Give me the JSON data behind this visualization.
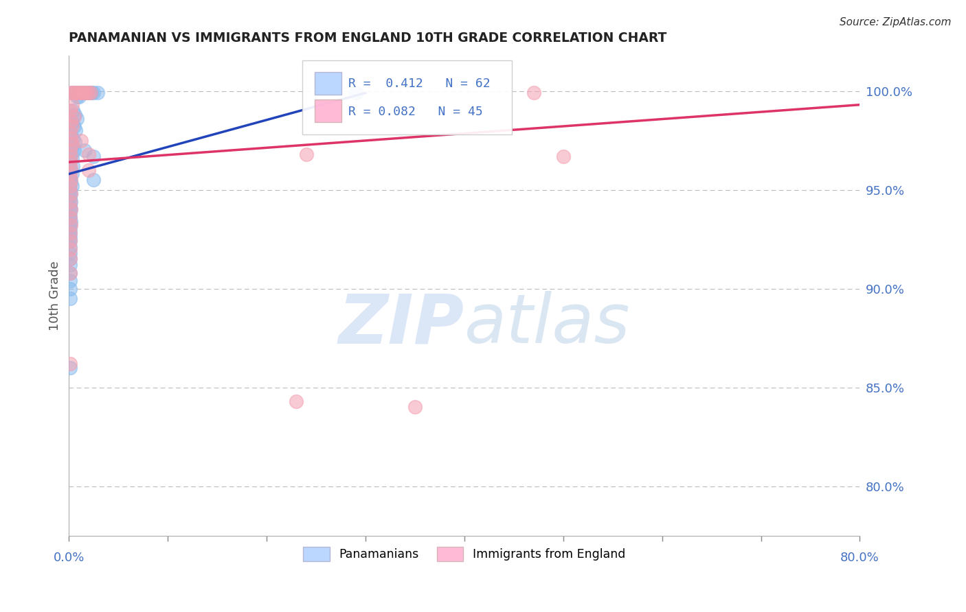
{
  "title": "PANAMANIAN VS IMMIGRANTS FROM ENGLAND 10TH GRADE CORRELATION CHART",
  "source": "Source: ZipAtlas.com",
  "ylabel": "10th Grade",
  "ylabel_ticks": [
    "100.0%",
    "95.0%",
    "90.0%",
    "85.0%",
    "80.0%"
  ],
  "ylabel_tick_vals": [
    1.0,
    0.95,
    0.9,
    0.85,
    0.8
  ],
  "xlim": [
    0.0,
    0.8
  ],
  "ylim": [
    0.775,
    1.018
  ],
  "legend_blue": "R =  0.412   N = 62",
  "legend_pink": "R = 0.082   N = 45",
  "blue_scatter": [
    [
      0.003,
      0.999
    ],
    [
      0.005,
      0.999
    ],
    [
      0.007,
      0.999
    ],
    [
      0.009,
      0.999
    ],
    [
      0.011,
      0.999
    ],
    [
      0.013,
      0.999
    ],
    [
      0.015,
      0.999
    ],
    [
      0.017,
      0.999
    ],
    [
      0.019,
      0.999
    ],
    [
      0.021,
      0.999
    ],
    [
      0.023,
      0.999
    ],
    [
      0.025,
      0.999
    ],
    [
      0.008,
      0.997
    ],
    [
      0.01,
      0.997
    ],
    [
      0.029,
      0.999
    ],
    [
      0.004,
      0.99
    ],
    [
      0.006,
      0.988
    ],
    [
      0.008,
      0.986
    ],
    [
      0.003,
      0.984
    ],
    [
      0.005,
      0.982
    ],
    [
      0.007,
      0.98
    ],
    [
      0.002,
      0.978
    ],
    [
      0.004,
      0.976
    ],
    [
      0.006,
      0.974
    ],
    [
      0.003,
      0.972
    ],
    [
      0.005,
      0.97
    ],
    [
      0.002,
      0.968
    ],
    [
      0.003,
      0.966
    ],
    [
      0.001,
      0.964
    ],
    [
      0.004,
      0.962
    ],
    [
      0.002,
      0.96
    ],
    [
      0.003,
      0.958
    ],
    [
      0.001,
      0.956
    ],
    [
      0.002,
      0.954
    ],
    [
      0.003,
      0.952
    ],
    [
      0.001,
      0.95
    ],
    [
      0.002,
      0.948
    ],
    [
      0.001,
      0.946
    ],
    [
      0.002,
      0.944
    ],
    [
      0.001,
      0.942
    ],
    [
      0.002,
      0.94
    ],
    [
      0.001,
      0.938
    ],
    [
      0.001,
      0.936
    ],
    [
      0.002,
      0.934
    ],
    [
      0.001,
      0.932
    ],
    [
      0.001,
      0.93
    ],
    [
      0.001,
      0.928
    ],
    [
      0.001,
      0.926
    ],
    [
      0.001,
      0.924
    ],
    [
      0.001,
      0.921
    ],
    [
      0.001,
      0.918
    ],
    [
      0.001,
      0.915
    ],
    [
      0.001,
      0.912
    ],
    [
      0.001,
      0.908
    ],
    [
      0.001,
      0.904
    ],
    [
      0.001,
      0.9
    ],
    [
      0.001,
      0.895
    ],
    [
      0.016,
      0.97
    ],
    [
      0.025,
      0.967
    ],
    [
      0.025,
      0.955
    ],
    [
      0.29,
      0.999
    ],
    [
      0.001,
      0.86
    ]
  ],
  "pink_scatter": [
    [
      0.002,
      0.999
    ],
    [
      0.004,
      0.999
    ],
    [
      0.006,
      0.999
    ],
    [
      0.008,
      0.999
    ],
    [
      0.01,
      0.999
    ],
    [
      0.012,
      0.999
    ],
    [
      0.014,
      0.999
    ],
    [
      0.016,
      0.999
    ],
    [
      0.018,
      0.999
    ],
    [
      0.02,
      0.999
    ],
    [
      0.022,
      0.999
    ],
    [
      0.003,
      0.993
    ],
    [
      0.001,
      0.99
    ],
    [
      0.005,
      0.987
    ],
    [
      0.002,
      0.985
    ],
    [
      0.003,
      0.982
    ],
    [
      0.001,
      0.979
    ],
    [
      0.002,
      0.976
    ],
    [
      0.003,
      0.973
    ],
    [
      0.001,
      0.97
    ],
    [
      0.002,
      0.967
    ],
    [
      0.001,
      0.964
    ],
    [
      0.002,
      0.961
    ],
    [
      0.001,
      0.958
    ],
    [
      0.002,
      0.955
    ],
    [
      0.001,
      0.952
    ],
    [
      0.002,
      0.948
    ],
    [
      0.001,
      0.944
    ],
    [
      0.002,
      0.94
    ],
    [
      0.001,
      0.936
    ],
    [
      0.002,
      0.932
    ],
    [
      0.001,
      0.928
    ],
    [
      0.001,
      0.924
    ],
    [
      0.001,
      0.92
    ],
    [
      0.001,
      0.915
    ],
    [
      0.012,
      0.975
    ],
    [
      0.02,
      0.968
    ],
    [
      0.02,
      0.96
    ],
    [
      0.001,
      0.908
    ],
    [
      0.001,
      0.862
    ],
    [
      0.47,
      0.999
    ],
    [
      0.5,
      0.967
    ],
    [
      0.24,
      0.968
    ],
    [
      0.35,
      0.84
    ],
    [
      0.23,
      0.843
    ]
  ],
  "blue_line_x": [
    0.0,
    0.3
  ],
  "blue_line_y": [
    0.958,
    0.999
  ],
  "pink_line_x": [
    0.0,
    0.8
  ],
  "pink_line_y": [
    0.964,
    0.993
  ],
  "blue_color": "#88bbee",
  "pink_color": "#f4a0b0",
  "blue_fill": "#aaccff",
  "pink_fill": "#ffaacc",
  "blue_line_color": "#2244bb",
  "pink_line_color": "#dd3366",
  "watermark_color": "#ccddf5",
  "grid_color": "#bbbbbb",
  "axis_label_color": "#4472c4",
  "title_color": "#222222"
}
